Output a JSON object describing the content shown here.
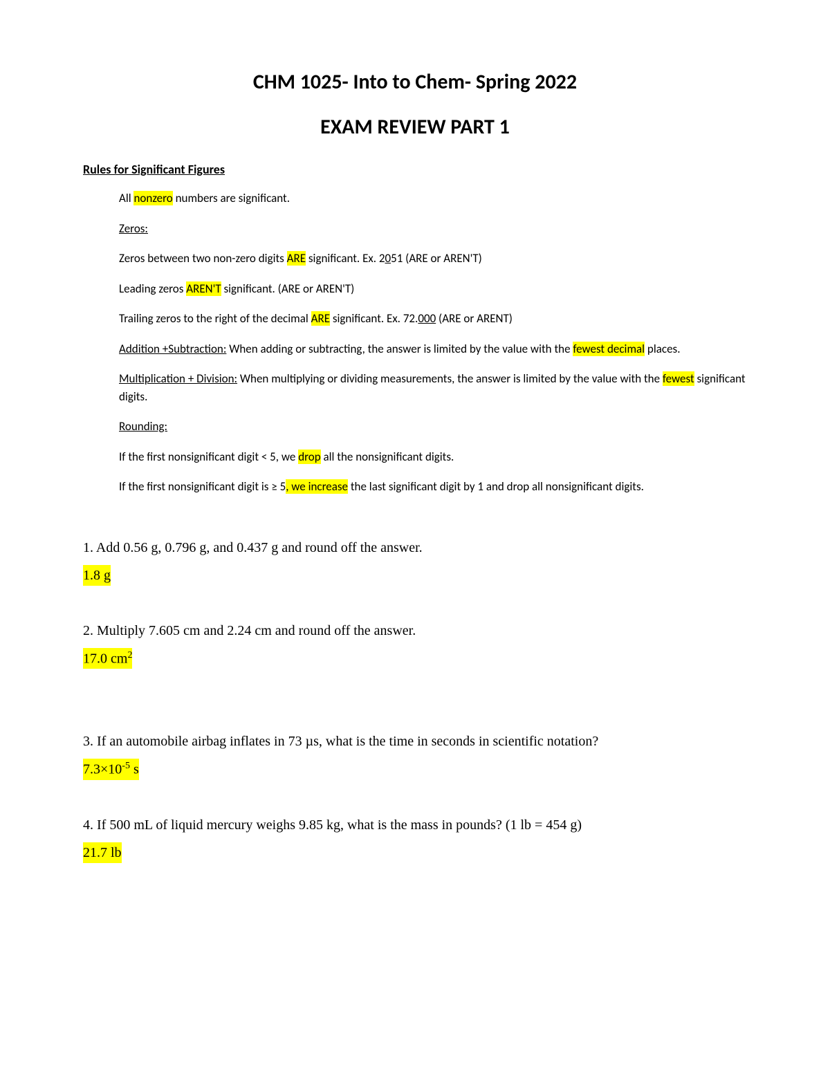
{
  "title1": "CHM 1025- Into to Chem- Spring 2022",
  "title2": "EXAM REVIEW PART 1",
  "section_header": "Rules for Significant Figures",
  "rules": {
    "line1_a": "All ",
    "line1_hl": "nonzero",
    "line1_b": " numbers are significant.",
    "zeros_header": "Zeros:",
    "line2_a": "Zeros between two non-zero digits ",
    "line2_hl": "ARE",
    "line2_b": " significant. Ex. 2",
    "line2_u": "0",
    "line2_c": "51 (ARE or AREN'T)",
    "line3_a": "Leading zeros ",
    "line3_hl": "AREN'T",
    "line3_b": " significant. (ARE or AREN'T)",
    "line4_a": "Trailing zeros to the right of the decimal ",
    "line4_hl": "ARE",
    "line4_b": " significant. Ex. 72.",
    "line4_u": "000",
    "line4_c": " (ARE or ARENT)",
    "addsub_label": "Addition +Subtraction:",
    "addsub_a": " When adding or subtracting, the answer is limited by the value with the ",
    "addsub_hl": "fewest decimal",
    "addsub_b": " places.",
    "muldiv_label": "Multiplication + Division:",
    "muldiv_a": " When multiplying or dividing measurements, the answer is limited by the value with the ",
    "muldiv_hl": "fewest",
    "muldiv_b": " significant digits.",
    "rounding_header": "Rounding:",
    "round1_a": "If the first nonsignificant digit < 5, we ",
    "round1_hl": "drop",
    "round1_b": " all the nonsignificant digits.",
    "round2_a": "If the first nonsignificant digit is ≥ 5",
    "round2_hl": ", we increase",
    "round2_b": " the last significant digit by 1 and drop all nonsignificant digits."
  },
  "q1": "1. Add 0.56 g, 0.796 g, and 0.437 g and round off the answer.",
  "a1": "1.8 g",
  "q2": "2. Multiply 7.605 cm and 2.24 cm and round off the answer.",
  "a2_a": "17.0 cm",
  "a2_sup": "2",
  "q3": "3. If an automobile airbag inflates in 73 µs, what is the time in seconds in scientific notation?",
  "a3_a": "7.3×10",
  "a3_sup": "-5",
  "a3_b": " s",
  "q4": "4. If 500 mL of liquid mercury weighs 9.85 kg, what is the mass in pounds? (1 lb = 454 g)",
  "a4": "21.7 lb",
  "colors": {
    "highlight": "#ffff00",
    "text": "#000000",
    "background": "#ffffff"
  }
}
